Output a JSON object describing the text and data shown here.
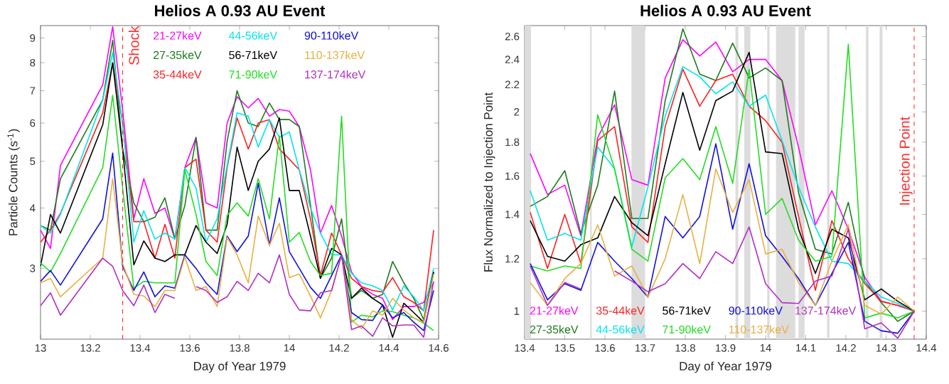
{
  "chart_data": [
    {
      "type": "line",
      "title": "Helios A 0.93 AU Event",
      "xlabel": "Day of Year 1979",
      "ylabel": "Particle Counts (s$^{-1}$)",
      "log": "y",
      "legend": "top",
      "line_style": "solid",
      "xlim": [
        13,
        14.6
      ],
      "xticks": [
        13,
        13.2,
        13.4,
        13.6,
        13.8,
        14,
        14.2,
        14.4,
        14.6
      ],
      "ylim": [
        2.14,
        9.55
      ],
      "yticks": [
        3,
        4,
        5,
        6,
        7,
        8,
        9
      ],
      "x": [
        13.0,
        13.04,
        13.08,
        13.25,
        13.29,
        13.33,
        13.375,
        13.415,
        13.46,
        13.5,
        13.54,
        13.58,
        13.625,
        13.665,
        13.71,
        13.75,
        13.79,
        13.835,
        13.875,
        13.92,
        13.96,
        14.0,
        14.04,
        14.085,
        14.125,
        14.17,
        14.21,
        14.25,
        14.29,
        14.335,
        14.375,
        14.415,
        14.46,
        14.5,
        14.54,
        14.58
      ],
      "series": [
        {
          "name": "21-27keV",
          "color": "#ff00ff",
          "values": [
            3.6,
            3.3,
            4.9,
            7.2,
            9.5,
            6.4,
            3.8,
            4.6,
            3.9,
            4.0,
            3.45,
            4.85,
            5.6,
            4.1,
            4.0,
            6.0,
            6.8,
            6.45,
            6.75,
            6.2,
            6.4,
            6.35,
            5.9,
            4.8,
            3.55,
            4.05,
            3.5,
            2.95,
            2.75,
            2.65,
            2.6,
            2.35,
            2.5,
            2.5,
            2.55,
            2.8
          ]
        },
        {
          "name": "27-35keV",
          "color": "#1e7b1e",
          "values": [
            3.68,
            3.6,
            4.6,
            6.7,
            8.9,
            5.3,
            4.1,
            3.75,
            3.83,
            4.2,
            3.45,
            4.05,
            5.6,
            3.6,
            3.6,
            5.5,
            7.0,
            6.0,
            5.9,
            6.6,
            6.1,
            6.1,
            5.9,
            4.06,
            2.86,
            3.15,
            3.8,
            2.6,
            2.7,
            2.6,
            2.65,
            3.1,
            2.8,
            2.6,
            2.35,
            2.95
          ]
        },
        {
          "name": "35-44keV",
          "color": "#ff2020",
          "values": [
            3.4,
            3.6,
            3.9,
            6.3,
            8.0,
            6.0,
            3.75,
            3.75,
            3.15,
            3.7,
            3.15,
            4.85,
            5.05,
            3.6,
            3.4,
            4.85,
            6.15,
            5.3,
            6.0,
            6.1,
            5.3,
            5.05,
            4.8,
            3.8,
            2.9,
            3.55,
            3.2,
            2.86,
            2.75,
            2.7,
            2.68,
            2.87,
            2.62,
            2.55,
            2.45,
            3.6
          ]
        },
        {
          "name": "44-56keV",
          "color": "#00e5ee",
          "values": [
            3.68,
            3.55,
            3.88,
            6.7,
            8.4,
            6.0,
            3.4,
            3.95,
            3.45,
            3.55,
            3.45,
            4.85,
            4.4,
            3.4,
            3.8,
            4.9,
            6.3,
            6.2,
            5.35,
            6.1,
            5.6,
            5.75,
            4.8,
            4.0,
            3.55,
            3.2,
            3.2,
            2.93,
            2.8,
            2.76,
            2.7,
            2.46,
            2.76,
            2.62,
            2.45,
            3.0
          ]
        },
        {
          "name": "56-71keV",
          "color": "#000000",
          "values": [
            3.03,
            3.88,
            3.55,
            5.95,
            8.0,
            5.3,
            3.05,
            3.42,
            3.15,
            3.1,
            3.2,
            3.2,
            3.68,
            3.4,
            3.22,
            3.7,
            5.35,
            4.35,
            5.0,
            5.3,
            6.15,
            4.35,
            4.35,
            3.5,
            2.86,
            3.3,
            3.2,
            2.6,
            2.73,
            2.6,
            2.52,
            2.16,
            2.54,
            2.43,
            2.32,
            2.95
          ]
        },
        {
          "name": "71-90keV",
          "color": "#22dd22",
          "values": [
            3.08,
            2.95,
            3.22,
            4.85,
            6.85,
            4.4,
            2.73,
            2.82,
            2.8,
            2.8,
            2.8,
            4.8,
            3.88,
            3.1,
            2.9,
            3.86,
            4.1,
            3.85,
            4.6,
            3.8,
            5.65,
            3.4,
            3.56,
            3.1,
            2.9,
            2.93,
            6.2,
            2.32,
            2.4,
            2.38,
            2.45,
            2.44,
            2.4,
            2.37,
            2.31,
            2.23
          ]
        },
        {
          "name": "90-110keV",
          "color": "#1010dd",
          "values": [
            2.82,
            2.97,
            2.77,
            3.8,
            5.2,
            3.03,
            2.7,
            2.95,
            2.62,
            2.76,
            2.73,
            3.2,
            3.0,
            2.8,
            2.65,
            3.5,
            3.25,
            3.5,
            4.5,
            3.35,
            4.2,
            3.25,
            3.0,
            2.74,
            2.6,
            2.9,
            3.2,
            2.43,
            2.35,
            2.34,
            2.52,
            2.37,
            2.43,
            2.32,
            2.23,
            2.7
          ]
        },
        {
          "name": "110-137keV",
          "color": "#e8b040",
          "values": [
            2.8,
            2.86,
            2.62,
            3.15,
            4.6,
            3.07,
            2.65,
            2.63,
            2.5,
            2.7,
            2.7,
            3.17,
            2.7,
            2.75,
            2.5,
            3.48,
            3.2,
            2.8,
            3.85,
            3.35,
            3.72,
            2.87,
            2.92,
            2.63,
            2.37,
            2.7,
            3.2,
            2.35,
            2.25,
            2.45,
            2.4,
            2.6,
            2.46,
            2.37,
            2.32,
            2.92
          ]
        },
        {
          "name": "137-174keV",
          "color": "#b030c0",
          "values": [
            2.51,
            2.67,
            2.4,
            3.15,
            3.03,
            2.7,
            2.51,
            2.77,
            2.43,
            2.65,
            2.6,
            null,
            2.75,
            2.7,
            2.55,
            2.62,
            2.82,
            2.7,
            2.93,
            2.8,
            3.2,
            2.65,
            2.46,
            2.45,
            2.67,
            2.7,
            3.2,
            2.24,
            2.28,
            2.17,
            2.37,
            2.28,
            2.29,
            2.29,
            2.16,
            2.82
          ]
        }
      ],
      "ref_lines": [
        {
          "axis": "x",
          "value": 13.33,
          "label": "Shock",
          "color": "#ff3030",
          "line_style": "dashed"
        }
      ]
    },
    {
      "type": "line",
      "title": "Helios A 0.93 AU Event",
      "xlabel": "Day of Year 1979",
      "ylabel": "Flux Normalized to Injection Point",
      "log": "y",
      "legend": "bottom",
      "line_style": "solid",
      "xlim": [
        13.4,
        14.4
      ],
      "xticks": [
        13.4,
        13.5,
        13.6,
        13.7,
        13.8,
        13.9,
        14,
        14.1,
        14.2,
        14.3,
        14.4
      ],
      "ylim": [
        0.907,
        2.7
      ],
      "yticks": [
        1,
        1.2,
        1.4,
        1.6,
        1.8,
        2,
        2.2,
        2.4,
        2.6
      ],
      "x": [
        13.414,
        13.457,
        13.5,
        13.54,
        13.582,
        13.624,
        13.667,
        13.707,
        13.75,
        13.794,
        13.836,
        13.876,
        13.918,
        13.959,
        14.0,
        14.041,
        14.082,
        14.124,
        14.165,
        14.206,
        14.247,
        14.288,
        14.329,
        14.37
      ],
      "series": [
        {
          "name": "21-27keV",
          "color": "#ff00ff",
          "values": [
            1.73,
            1.5,
            1.55,
            1.3,
            1.83,
            2.05,
            1.58,
            1.55,
            2.25,
            2.57,
            2.43,
            2.55,
            2.3,
            2.4,
            2.4,
            2.23,
            1.77,
            1.35,
            1.52,
            1.33,
            1.125,
            1.035,
            1.02,
            1.0
          ]
        },
        {
          "name": "27-35keV",
          "color": "#1e7b1e",
          "values": [
            1.44,
            1.49,
            1.63,
            1.31,
            1.55,
            2.15,
            1.38,
            1.38,
            2.08,
            2.67,
            2.28,
            2.23,
            2.54,
            2.25,
            2.33,
            2.23,
            1.51,
            1.24,
            1.22,
            1.46,
            1.11,
            1.03,
            0.965,
            1.0
          ]
        },
        {
          "name": "35-44keV",
          "color": "#ff2020",
          "values": [
            1.41,
            1.16,
            1.4,
            1.18,
            1.81,
            1.9,
            1.34,
            1.27,
            1.9,
            2.32,
            2.04,
            2.23,
            2.28,
            2.04,
            1.94,
            1.8,
            1.39,
            1.075,
            1.37,
            1.2,
            1.1,
            1.035,
            1.02,
            1.0
          ]
        },
        {
          "name": "44-56keV",
          "color": "#00e5ee",
          "values": [
            1.52,
            1.28,
            1.31,
            1.28,
            1.77,
            1.64,
            1.25,
            1.54,
            1.97,
            2.34,
            2.26,
            2.13,
            2.22,
            2.04,
            2.12,
            1.81,
            1.54,
            1.34,
            1.19,
            1.18,
            1.11,
            1.05,
            1.027,
            1.0
          ]
        },
        {
          "name": "56-71keV",
          "color": "#000000",
          "values": [
            1.37,
            1.21,
            1.19,
            1.26,
            1.29,
            1.49,
            1.36,
            1.3,
            1.67,
            2.14,
            1.75,
            2.08,
            2.15,
            2.46,
            1.74,
            1.73,
            1.33,
            1.14,
            1.33,
            1.29,
            1.04,
            1.08,
            1.035,
            1.0
          ]
        },
        {
          "name": "71-90keV",
          "color": "#22dd22",
          "values": [
            1.17,
            1.15,
            1.17,
            1.16,
            1.98,
            1.64,
            1.24,
            1.19,
            1.59,
            1.7,
            1.58,
            1.9,
            1.56,
            2.32,
            1.4,
            1.48,
            1.28,
            1.19,
            1.21,
            2.53,
            0.977,
            0.993,
            0.977,
            1.0
          ]
        },
        {
          "name": "90-110keV",
          "color": "#1010dd",
          "values": [
            1.18,
            1.04,
            1.1,
            1.075,
            1.27,
            1.19,
            1.12,
            1.05,
            1.39,
            1.29,
            1.39,
            1.79,
            1.33,
            1.67,
            1.3,
            1.21,
            1.12,
            1.02,
            1.14,
            1.27,
            0.965,
            0.934,
            0.926,
            1.0
          ]
        },
        {
          "name": "110-137keV",
          "color": "#e8b040",
          "values": [
            1.105,
            1.02,
            1.12,
            1.18,
            1.35,
            1.13,
            1.17,
            1.05,
            1.2,
            1.5,
            1.18,
            1.64,
            1.41,
            1.58,
            1.22,
            1.24,
            1.105,
            1.02,
            1.19,
            1.35,
            1.02,
            0.99,
            1.05,
            1.0
          ]
        },
        {
          "name": "137-174keV",
          "color": "#b030c0",
          "values": [
            1.17,
            1.02,
            1.105,
            1.08,
            null,
            1.15,
            1.11,
            1.07,
            1.1,
            1.18,
            1.12,
            1.23,
            1.18,
            1.34,
            1.1,
            1.03,
            1.027,
            1.11,
            1.13,
            1.33,
            0.94,
            0.96,
            0.91,
            1.0
          ]
        }
      ],
      "ref_lines": [
        {
          "axis": "x",
          "value": 14.37,
          "label": "Injection Point",
          "color": "#ff3030",
          "line_style": "dashed"
        }
      ],
      "bands": [
        {
          "axis": "x",
          "from": 13.4,
          "to": 13.416,
          "color": "#dcdcdc"
        },
        {
          "axis": "x",
          "from": 13.563,
          "to": 13.567,
          "color": "#dcdcdc"
        },
        {
          "axis": "x",
          "from": 13.666,
          "to": 13.7,
          "color": "#dcdcdc"
        },
        {
          "axis": "x",
          "from": 13.925,
          "to": 13.932,
          "color": "#dcdcdc"
        },
        {
          "axis": "x",
          "from": 13.947,
          "to": 13.962,
          "color": "#dcdcdc"
        },
        {
          "axis": "x",
          "from": 14.004,
          "to": 14.01,
          "color": "#dcdcdc"
        },
        {
          "axis": "x",
          "from": 14.026,
          "to": 14.074,
          "color": "#dcdcdc"
        },
        {
          "axis": "x",
          "from": 14.082,
          "to": 14.097,
          "color": "#dcdcdc"
        },
        {
          "axis": "x",
          "from": 14.153,
          "to": 14.159,
          "color": "#dcdcdc"
        },
        {
          "axis": "x",
          "from": 14.25,
          "to": 14.256,
          "color": "#dcdcdc"
        },
        {
          "axis": "x",
          "from": 14.284,
          "to": 14.291,
          "color": "#dcdcdc"
        }
      ]
    }
  ]
}
